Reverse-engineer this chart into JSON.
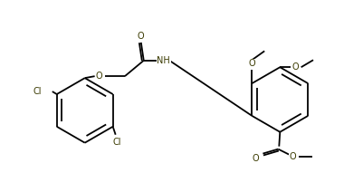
{
  "bg": "#ffffff",
  "lc": "#000000",
  "tc": "#3a3a00",
  "lw": 1.3,
  "fs": 7.0,
  "figw": 4.02,
  "figh": 2.12,
  "xlim": [
    0,
    4.02
  ],
  "ylim": [
    0,
    2.12
  ]
}
